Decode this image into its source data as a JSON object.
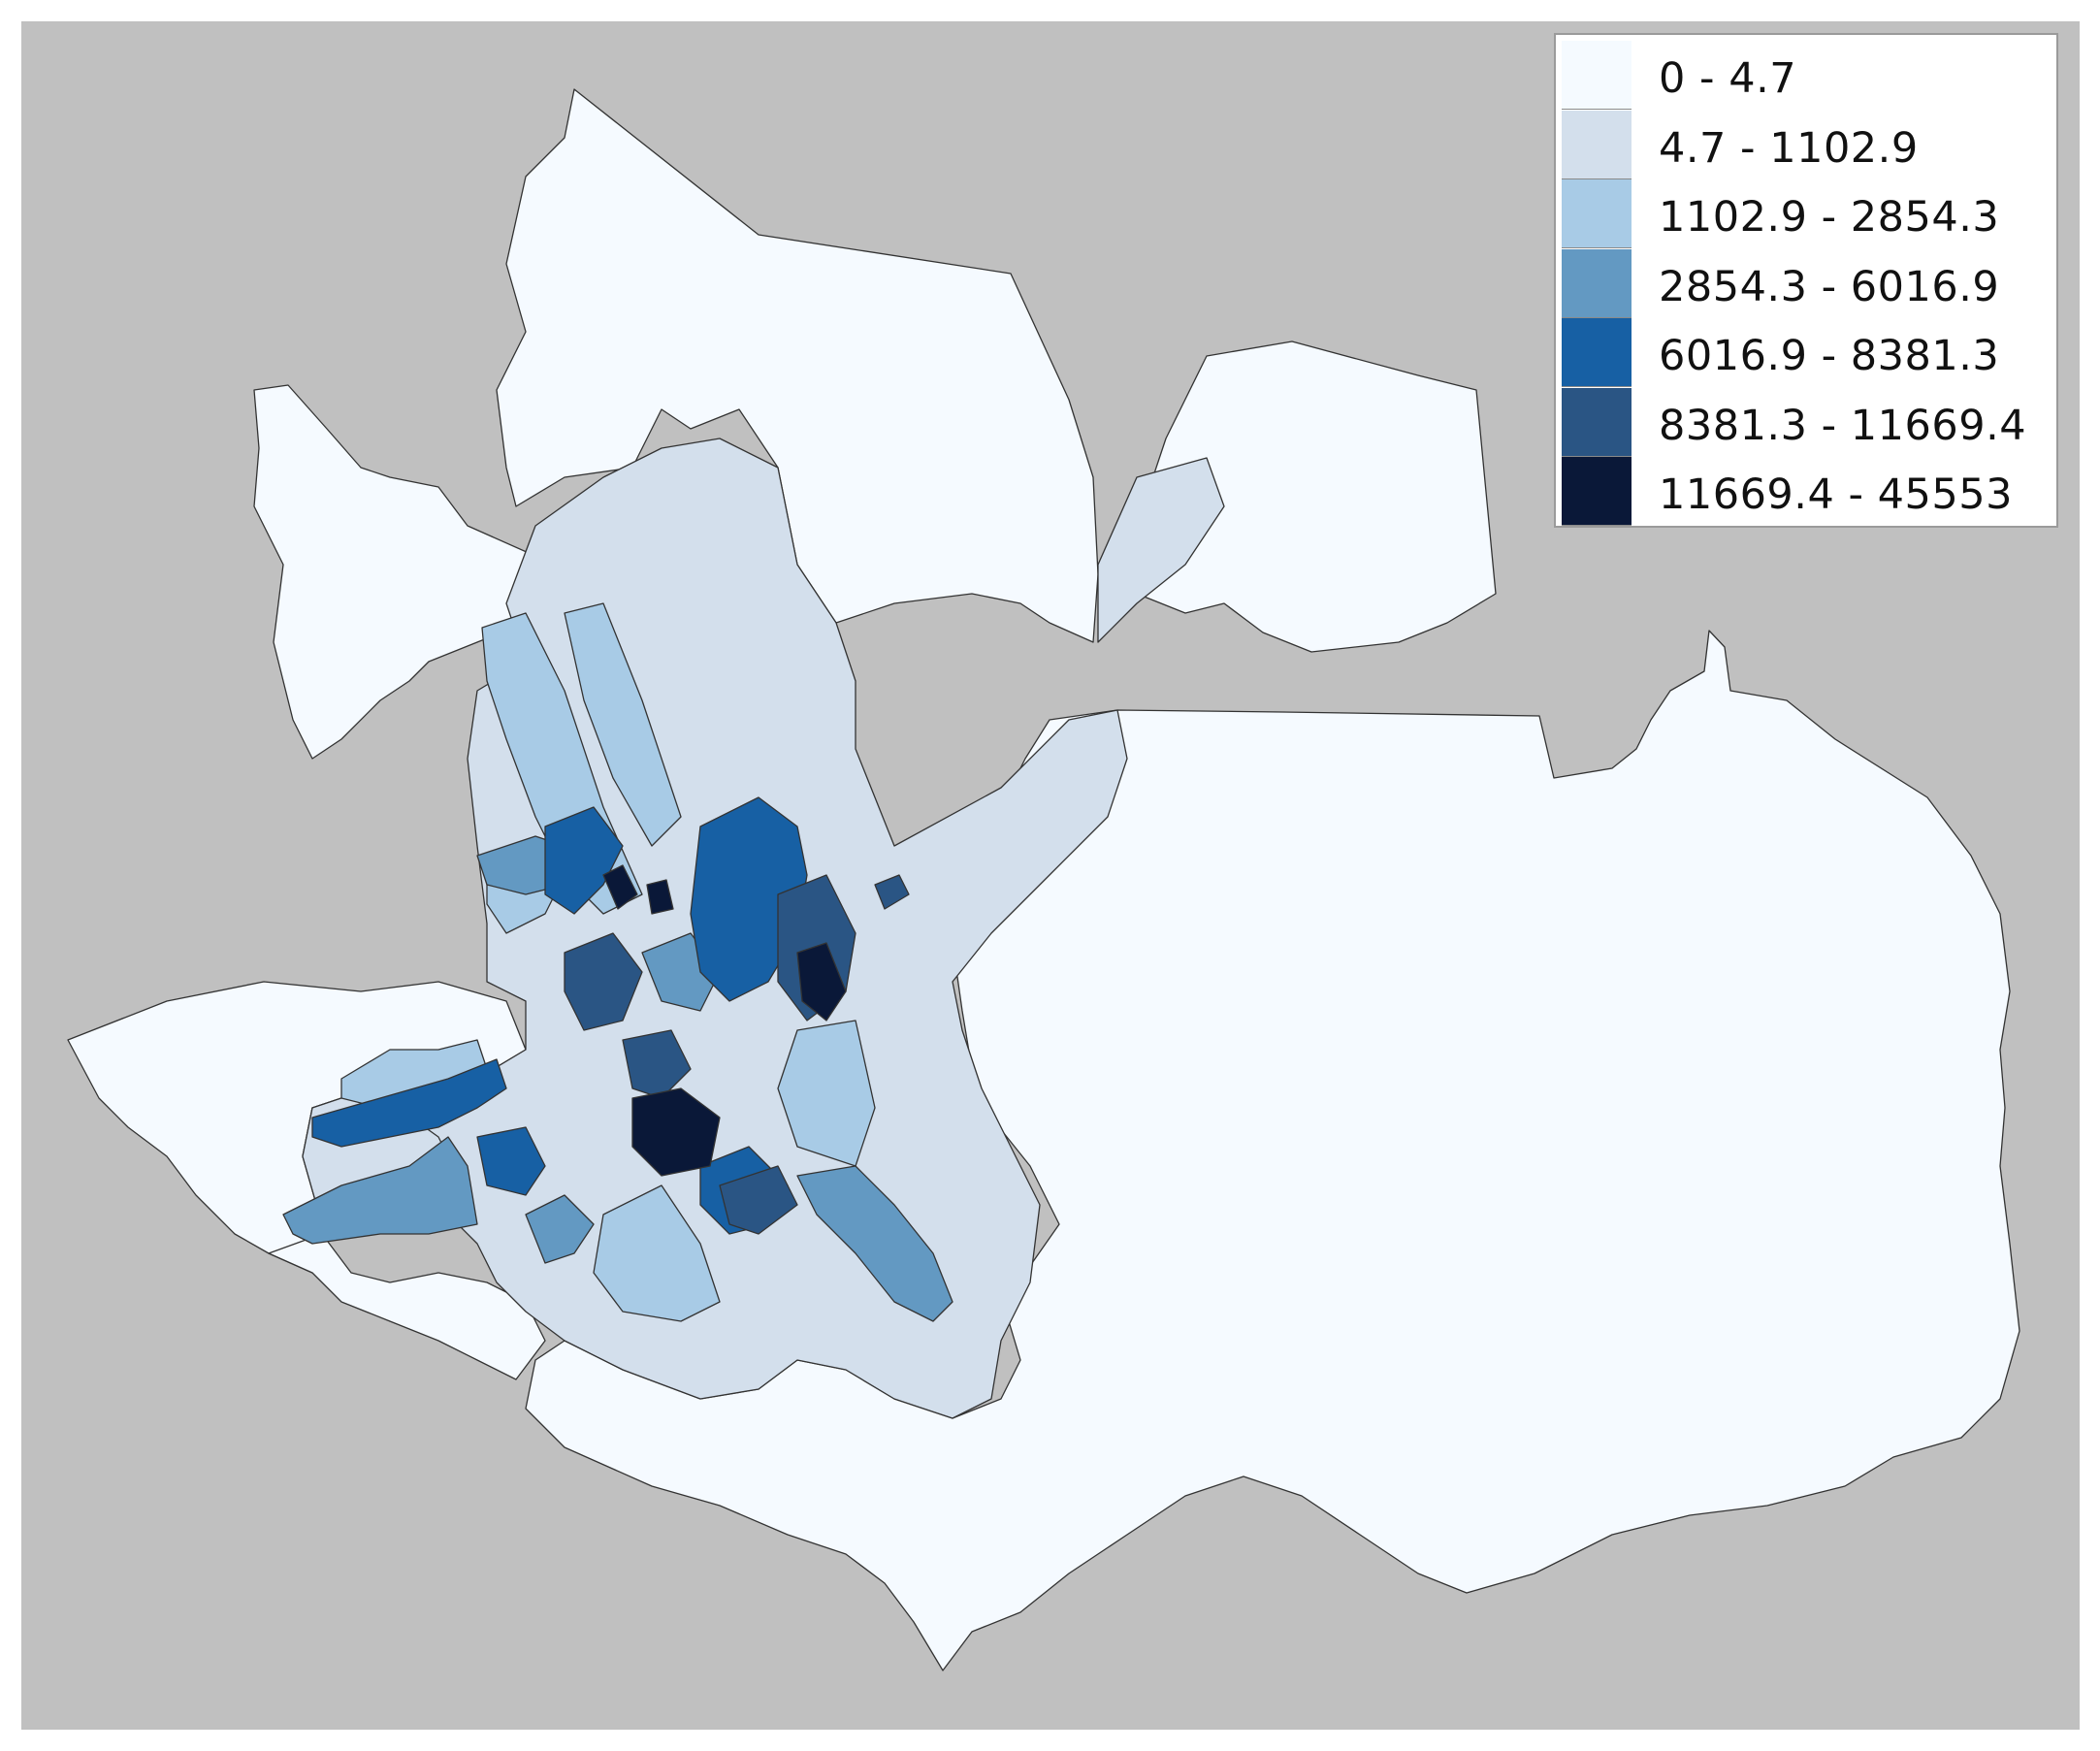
{
  "map": {
    "background_color": "#c0c0c0",
    "boundary_color": "#333333"
  },
  "legend": {
    "classes": [
      {
        "label": "0 - 4.7",
        "color": "#f5faff"
      },
      {
        "label": "4.7 - 1102.9",
        "color": "#d3dfec"
      },
      {
        "label": "1102.9 - 2854.3",
        "color": "#a8cbe6"
      },
      {
        "label": "2854.3 - 6016.9",
        "color": "#6399c2"
      },
      {
        "label": "6016.9 - 8381.3",
        "color": "#1760a4"
      },
      {
        "label": "8381.3 - 11669.4",
        "color": "#2a5584"
      },
      {
        "label": "11669.4 - 45553",
        "color": "#0a1838"
      }
    ]
  }
}
